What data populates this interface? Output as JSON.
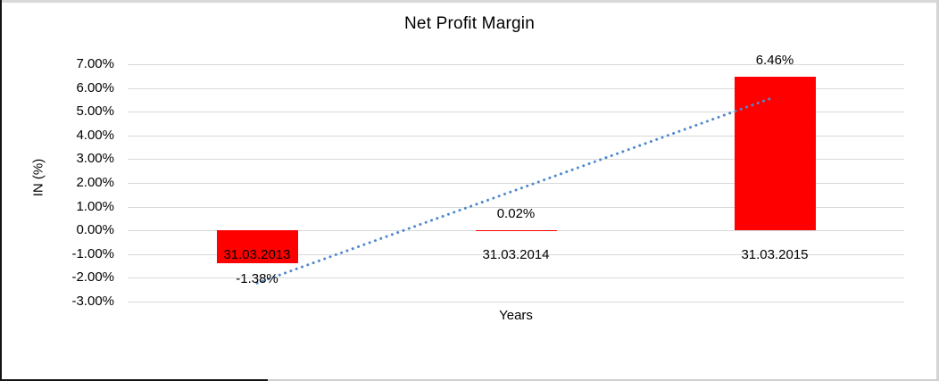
{
  "chart_data": {
    "type": "bar",
    "title": "Net Profit Margin",
    "xlabel": "Years",
    "ylabel": "IN (%)",
    "categories": [
      "31.03.2013",
      "31.03.2014",
      "31.03.2015"
    ],
    "values": [
      -1.38,
      0.02,
      6.46
    ],
    "data_labels": [
      "-1.38%",
      "0.02%",
      "6.46%"
    ],
    "ylim": [
      -3,
      7
    ],
    "ytick_step": 1,
    "ytick_decimals": 2,
    "ytick_suffix": "%",
    "grid": true,
    "legend": "none",
    "bar_color": "#FF0000",
    "gridline_color": "#D9D9D9",
    "text_color": "#000000",
    "trendline": {
      "style": "dotted",
      "color": "#5089CE",
      "start_value": -2.22,
      "end_value": 5.62
    }
  }
}
